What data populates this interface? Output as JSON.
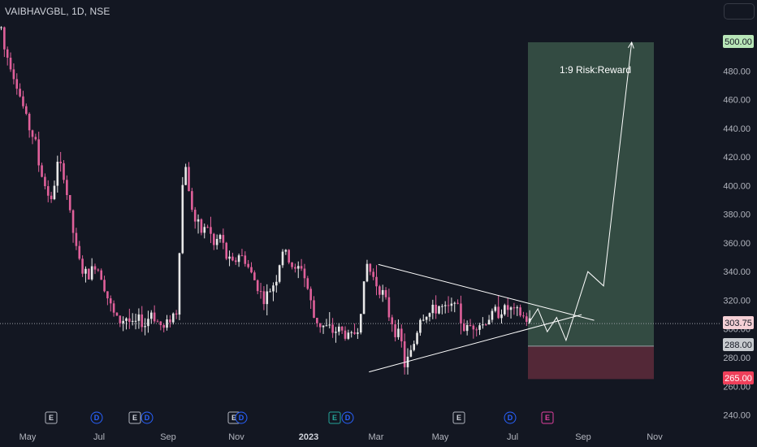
{
  "header": {
    "symbol_line": "VAIBHAVGBL, 1D, NSE"
  },
  "annotation": {
    "risk_reward_label": "1:9 Risk:Reward"
  },
  "price_tags": {
    "target": "500.00",
    "current": "303.75",
    "entry": "288.00",
    "stop": "265.00"
  },
  "events": [
    "E",
    "D",
    "E",
    "D",
    "E",
    "E",
    "D",
    "E",
    "D",
    "E"
  ],
  "colors": {
    "background": "#131722",
    "up": "#e8e8e8",
    "down": "#e0609a",
    "target_zone": "#3a5548",
    "stop_zone": "#5b2a3a",
    "target_tag": "#b8e6b8",
    "stop_tag": "#ef3f5a",
    "line": "#ffffff"
  },
  "chart_data": {
    "type": "candlestick",
    "title": "VAIBHAVGBL, 1D, NSE",
    "ylim": [
      234,
      516
    ],
    "y_ticks": [
      500,
      480,
      460,
      440,
      420,
      400,
      380,
      360,
      340,
      320,
      300,
      280,
      260,
      240
    ],
    "y_tick_labels": [
      "500.00",
      "480.00",
      "460.00",
      "440.00",
      "420.00",
      "400.00",
      "380.00",
      "360.00",
      "340.00",
      "320.00",
      "300.00",
      "280.00",
      "260.00",
      "240.00"
    ],
    "x_tick_labels": [
      "May",
      "Jul",
      "Sep",
      "Nov",
      "2023",
      "Mar",
      "May",
      "Jul",
      "Sep",
      "Nov"
    ],
    "grid": false,
    "price_path": [
      [
        0,
        510
      ],
      [
        1,
        495
      ],
      [
        3,
        485
      ],
      [
        5,
        470
      ],
      [
        7,
        455
      ],
      [
        9,
        440
      ],
      [
        11,
        430
      ],
      [
        12,
        415
      ],
      [
        14,
        400
      ],
      [
        15,
        395
      ],
      [
        16,
        388
      ],
      [
        18,
        415
      ],
      [
        20,
        408
      ],
      [
        22,
        380
      ],
      [
        24,
        355
      ],
      [
        26,
        340
      ],
      [
        28,
        337
      ],
      [
        30,
        345
      ],
      [
        32,
        338
      ],
      [
        34,
        322
      ],
      [
        36,
        310
      ],
      [
        38,
        305
      ],
      [
        40,
        308
      ],
      [
        42,
        302
      ],
      [
        44,
        306
      ],
      [
        46,
        303
      ],
      [
        48,
        312
      ],
      [
        50,
        305
      ],
      [
        52,
        300
      ],
      [
        54,
        308
      ],
      [
        56,
        312
      ],
      [
        58,
        400
      ],
      [
        59,
        415
      ],
      [
        60,
        395
      ],
      [
        62,
        375
      ],
      [
        64,
        368
      ],
      [
        66,
        372
      ],
      [
        68,
        358
      ],
      [
        70,
        365
      ],
      [
        72,
        350
      ],
      [
        74,
        345
      ],
      [
        76,
        352
      ],
      [
        78,
        348
      ],
      [
        80,
        338
      ],
      [
        82,
        330
      ],
      [
        84,
        320
      ],
      [
        86,
        327
      ],
      [
        88,
        336
      ],
      [
        90,
        355
      ],
      [
        92,
        348
      ],
      [
        94,
        340
      ],
      [
        96,
        344
      ],
      [
        98,
        328
      ],
      [
        100,
        308
      ],
      [
        102,
        303
      ],
      [
        104,
        301
      ],
      [
        106,
        298
      ],
      [
        108,
        300
      ],
      [
        110,
        296
      ],
      [
        112,
        295
      ],
      [
        114,
        300
      ],
      [
        116,
        330
      ],
      [
        117,
        345
      ],
      [
        118,
        340
      ],
      [
        120,
        332
      ],
      [
        122,
        325
      ],
      [
        124,
        310
      ],
      [
        126,
        300
      ],
      [
        128,
        290
      ],
      [
        129,
        275
      ],
      [
        130,
        278
      ],
      [
        132,
        290
      ],
      [
        134,
        308
      ],
      [
        136,
        310
      ],
      [
        138,
        312
      ],
      [
        140,
        316
      ],
      [
        142,
        313
      ],
      [
        144,
        315
      ],
      [
        145,
        324
      ],
      [
        146,
        312
      ],
      [
        148,
        300
      ],
      [
        150,
        302
      ],
      [
        152,
        304
      ],
      [
        154,
        303
      ],
      [
        156,
        308
      ],
      [
        158,
        312
      ],
      [
        160,
        313
      ],
      [
        162,
        314
      ],
      [
        164,
        312
      ],
      [
        166,
        310
      ],
      [
        168,
        306
      ],
      [
        170,
        304
      ]
    ],
    "trendlines": [
      {
        "name": "upper",
        "x": [
          121,
          190
        ],
        "y": [
          345,
          306
        ]
      },
      {
        "name": "lower",
        "x": [
          118,
          186
        ],
        "y": [
          270,
          310
        ]
      }
    ],
    "projection_path": [
      [
        169,
        303.75
      ],
      [
        172,
        314
      ],
      [
        175,
        298
      ],
      [
        178,
        308
      ],
      [
        181,
        292
      ],
      [
        188,
        340
      ],
      [
        193,
        330
      ],
      [
        202,
        500
      ]
    ],
    "position": {
      "type": "long",
      "entry": 288,
      "target": 500,
      "stop": 265,
      "current": 303.75,
      "label": "1:9 Risk:Reward"
    }
  }
}
